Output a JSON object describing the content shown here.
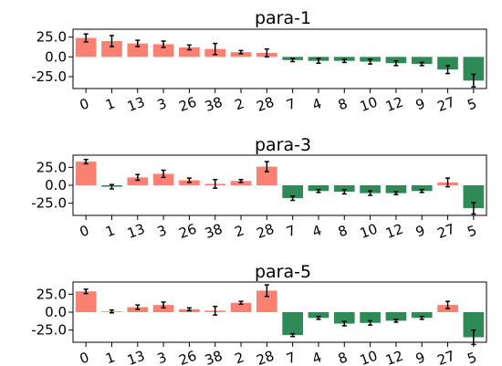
{
  "chart_data": [
    {
      "type": "bar",
      "title": "para-1",
      "categories": [
        "0",
        "1",
        "13",
        "3",
        "26",
        "38",
        "2",
        "28",
        "7",
        "4",
        "8",
        "10",
        "12",
        "9",
        "27",
        "5"
      ],
      "values": [
        24,
        20,
        17,
        16,
        12,
        10,
        6,
        5,
        -4,
        -5,
        -5,
        -6,
        -8,
        -9,
        -16,
        -30
      ],
      "errors": [
        5,
        7,
        4,
        4,
        3,
        7,
        2,
        5,
        2,
        3,
        2,
        3,
        3,
        2,
        5,
        8
      ],
      "ylim": [
        -40,
        35
      ],
      "yticks": [
        "25.0",
        "0.0",
        "-25.0"
      ],
      "ytick_values": [
        25,
        0,
        -25
      ],
      "colors": {
        "positive": "#fa8072",
        "negative": "#2e8b57"
      }
    },
    {
      "type": "bar",
      "title": "para-3",
      "categories": [
        "0",
        "1",
        "13",
        "3",
        "26",
        "38",
        "2",
        "28",
        "7",
        "4",
        "8",
        "10",
        "12",
        "9",
        "27",
        "5"
      ],
      "values": [
        33,
        -2,
        11,
        16,
        7,
        2,
        6,
        26,
        -18,
        -8,
        -9,
        -11,
        -11,
        -8,
        4,
        -32
      ],
      "errors": [
        3,
        3,
        4,
        5,
        3,
        6,
        2,
        7,
        3,
        2,
        3,
        3,
        2,
        2,
        6,
        8
      ],
      "ylim": [
        -42,
        42
      ],
      "yticks": [
        "25.0",
        "0.0",
        "-25.0"
      ],
      "ytick_values": [
        25,
        0,
        -25
      ],
      "colors": {
        "positive": "#fa8072",
        "negative": "#2e8b57"
      }
    },
    {
      "type": "bar",
      "title": "para-5",
      "categories": [
        "0",
        "1",
        "13",
        "3",
        "26",
        "38",
        "2",
        "28",
        "7",
        "4",
        "8",
        "10",
        "12",
        "9",
        "27",
        "5"
      ],
      "values": [
        29,
        1,
        7,
        10,
        4,
        2,
        13,
        30,
        -32,
        -8,
        -16,
        -15,
        -12,
        -8,
        10,
        -35
      ],
      "errors": [
        3,
        2,
        3,
        4,
        2,
        6,
        2,
        8,
        2,
        2,
        3,
        3,
        2,
        2,
        5,
        10
      ],
      "ylim": [
        -42,
        42
      ],
      "yticks": [
        "25.0",
        "0.0",
        "-25.0"
      ],
      "ytick_values": [
        25,
        0,
        -25
      ],
      "colors": {
        "positive": "#fa8072",
        "negative": "#2e8b57"
      }
    }
  ]
}
